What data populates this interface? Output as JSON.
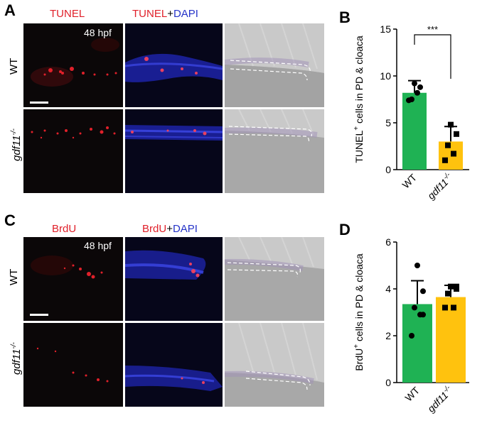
{
  "panels": {
    "a": {
      "letter": "A",
      "col1": "TUNEL",
      "col2_a": "TUNEL",
      "col2_plus": "+",
      "col2_b": "DAPI",
      "timepoint": "48 hpf",
      "row1": "WT",
      "row2": "gdf11",
      "row2_sup": "-/-"
    },
    "c": {
      "letter": "C",
      "col1": "BrdU",
      "col2_a": "BrdU",
      "col2_plus": "+",
      "col2_b": "DAPI",
      "timepoint": "48 hpf",
      "row1": "WT",
      "row2": "gdf11",
      "row2_sup": "-/-"
    }
  },
  "colors": {
    "wt_bar": "#1fb254",
    "mutant_bar": "#ffc20e",
    "red_label": "#e0202a",
    "blue_label": "#2533c8"
  },
  "chart_data": [
    {
      "type": "bar",
      "panel": "B",
      "categories": [
        "WT",
        "gdf11-/-"
      ],
      "values": [
        8.2,
        3.0
      ],
      "error": [
        1.3,
        1.6
      ],
      "points": [
        [
          9.2,
          8.8,
          7.5,
          8.2,
          7.4
        ],
        [
          4.8,
          3.8,
          2.6,
          1.7,
          1.0
        ]
      ],
      "ylabel": "TUNEL+ cells in PD & cloaca",
      "ylabel_main": "TUNEL",
      "ylabel_sup": "+",
      "ylabel_rest": " cells in PD & cloaca",
      "ylim": [
        0,
        15
      ],
      "yticks": [
        0,
        5,
        10,
        15
      ],
      "significance": "***"
    },
    {
      "type": "bar",
      "panel": "D",
      "categories": [
        "WT",
        "gdf11-/-"
      ],
      "values": [
        3.35,
        3.65
      ],
      "error": [
        1.0,
        0.5
      ],
      "points": [
        [
          5.0,
          3.9,
          3.2,
          2.9,
          2.0,
          2.9
        ],
        [
          4.1,
          4.1,
          3.8,
          3.2,
          3.2,
          4.0
        ]
      ],
      "ylabel": "BrdU+ cells in PD & cloaca",
      "ylabel_main": "BrdU",
      "ylabel_sup": "+",
      "ylabel_rest": " cells in PD & cloaca",
      "ylim": [
        0,
        6
      ],
      "yticks": [
        0,
        2,
        4,
        6
      ],
      "significance": ""
    }
  ]
}
